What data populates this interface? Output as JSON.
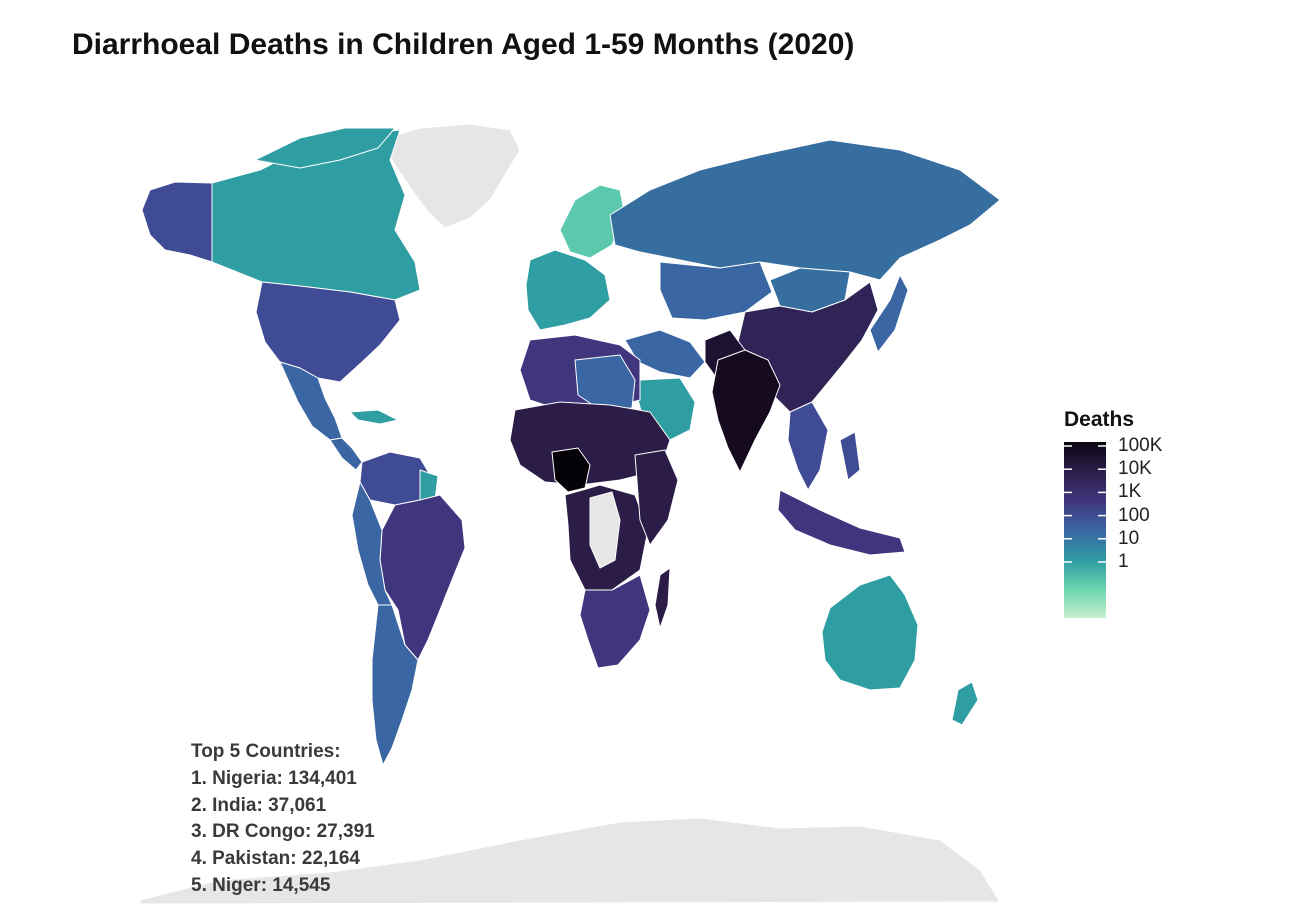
{
  "title": "Diarrhoeal Deaths in Children Aged 1-59 Months (2020)",
  "legend": {
    "title": "Deaths",
    "ticks": [
      "100K",
      "10K",
      "1K",
      "100",
      "10",
      "1"
    ],
    "tick_values": [
      100000,
      10000,
      1000,
      100,
      10,
      1
    ],
    "scale": "log",
    "placement": "right",
    "color_stops": [
      "#c6f0d0",
      "#6ed6b0",
      "#2f9ea3",
      "#3a66a3",
      "#40367e",
      "#2b1d48",
      "#0b0510"
    ]
  },
  "colors": {
    "no_data": "#e6e6e6",
    "border": "#ffffff"
  },
  "annotation": {
    "heading": "Top 5 Countries:",
    "lines": [
      "1. Nigeria: 134,401",
      "2. India: 37,061",
      "3. DR Congo: 27,391",
      "4. Pakistan: 22,164",
      "5. Niger: 14,545"
    ]
  },
  "chart_data": {
    "type": "choropleth",
    "title": "Diarrhoeal Deaths in Children Aged 1-59 Months (2020)",
    "scale": "log",
    "top5": [
      {
        "country": "Nigeria",
        "deaths": 134401
      },
      {
        "country": "India",
        "deaths": 37061
      },
      {
        "country": "DR Congo",
        "deaths": 27391
      },
      {
        "country": "Pakistan",
        "deaths": 22164
      },
      {
        "country": "Niger",
        "deaths": 14545
      }
    ]
  }
}
